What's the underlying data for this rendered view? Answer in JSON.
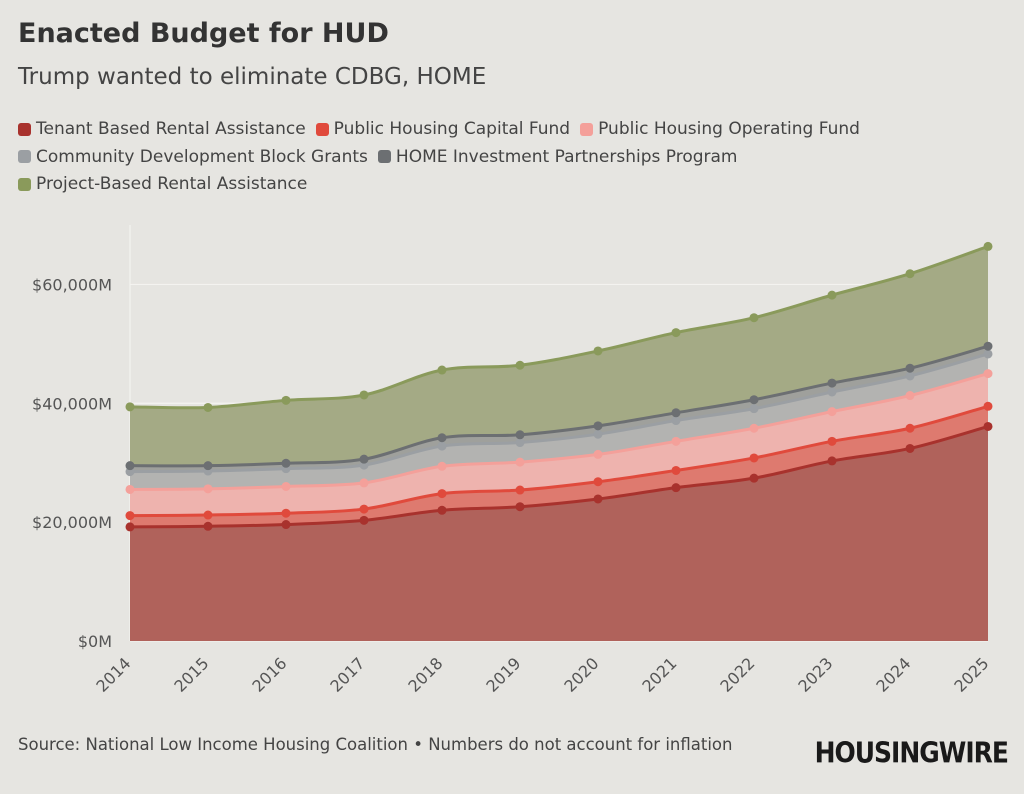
{
  "title": "Enacted Budget for HUD",
  "subtitle": "Trump wanted to eliminate CDBG, HOME",
  "source": "Source: National Low Income Housing Coalition • Numbers do not account for inflation",
  "logo": "HOUSINGWIRE",
  "chart_data": {
    "type": "area",
    "stacked": true,
    "title": "Enacted Budget for HUD",
    "subtitle": "Trump wanted to eliminate CDBG, HOME",
    "x": [
      "2014",
      "2015",
      "2016",
      "2017",
      "2018",
      "2019",
      "2020",
      "2021",
      "2022",
      "2023",
      "2024",
      "2025"
    ],
    "ylim": [
      0,
      70000
    ],
    "yticks": [
      0,
      20000,
      40000,
      60000
    ],
    "ytick_labels": [
      "$0M",
      "$20,000M",
      "$40,000M",
      "$60,000M"
    ],
    "legend_position": "top",
    "grid": "horizontal",
    "series": [
      {
        "name": "Tenant Based Rental Assistance",
        "color": "#a8322d",
        "fill": "#b0625b",
        "values": [
          19200,
          19300,
          19600,
          20300,
          22000,
          22600,
          23900,
          25800,
          27400,
          30300,
          32400,
          36100
        ]
      },
      {
        "name": "Public Housing Capital Fund",
        "color": "#e04a3c",
        "fill": "#de7a6f",
        "values": [
          1900,
          1900,
          1900,
          1900,
          2800,
          2800,
          2900,
          2900,
          3400,
          3300,
          3400,
          3400
        ]
      },
      {
        "name": "Public Housing Operating Fund",
        "color": "#f4a09a",
        "fill": "#eeb3ae",
        "values": [
          4400,
          4400,
          4500,
          4400,
          4600,
          4700,
          4600,
          4900,
          5000,
          5000,
          5500,
          5500
        ]
      },
      {
        "name": "Community Development Block Grants",
        "color": "#9b9fa3",
        "fill": "#b3b3b1",
        "values": [
          3000,
          3000,
          3000,
          3000,
          3400,
          3300,
          3400,
          3500,
          3300,
          3300,
          3300,
          3300
        ]
      },
      {
        "name": "HOME Investment Partnerships Program",
        "color": "#6c6f72",
        "fill": "#9fa09c",
        "values": [
          1000,
          900,
          900,
          1000,
          1400,
          1300,
          1400,
          1300,
          1500,
          1500,
          1300,
          1300
        ]
      },
      {
        "name": "Project-Based Rental Assistance",
        "color": "#8a9a5b",
        "fill": "#a4aa85",
        "values": [
          9900,
          9800,
          10600,
          10800,
          11400,
          11700,
          12600,
          13500,
          13800,
          14800,
          15900,
          16800
        ]
      }
    ]
  }
}
